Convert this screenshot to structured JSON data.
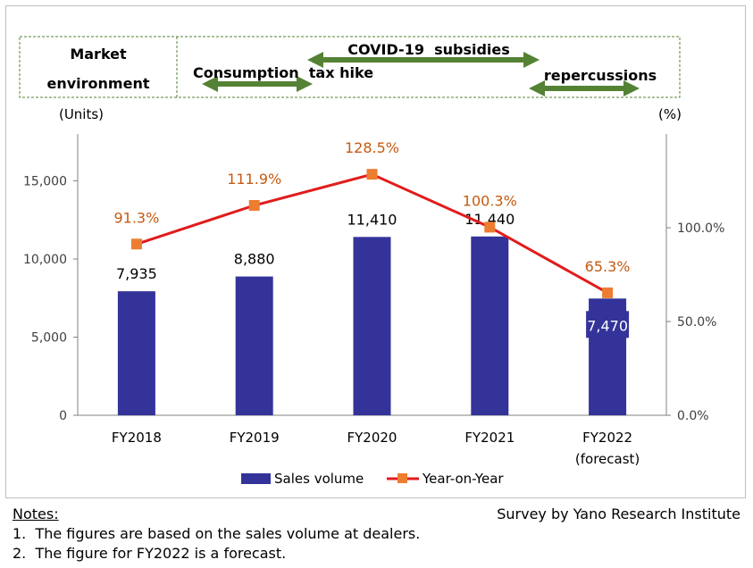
{
  "chart_data": {
    "type": "bar",
    "categories": [
      "FY2018",
      "FY2019",
      "FY2020",
      "FY2021",
      "FY2022"
    ],
    "category_sublabels": [
      "",
      "",
      "",
      "",
      "(forecast)"
    ],
    "series": [
      {
        "name": "Sales volume",
        "kind": "bar",
        "axis": "left",
        "values": [
          7935,
          8880,
          11410,
          11440,
          7470
        ],
        "labels": [
          "7,935",
          "8,880",
          "11,410",
          "11,440",
          "7,470"
        ]
      },
      {
        "name": "Year-on-Year",
        "kind": "line",
        "axis": "right",
        "values": [
          91.3,
          111.9,
          128.5,
          100.3,
          65.3
        ],
        "labels": [
          "91.3%",
          "111.9%",
          "128.5%",
          "100.3%",
          "65.3%"
        ]
      }
    ],
    "y_left": {
      "label": "(Units)",
      "ylim": [
        0,
        18000
      ],
      "ticks": [
        0,
        5000,
        10000,
        15000
      ],
      "tick_labels": [
        "0",
        "5,000",
        "10,000",
        "15,000"
      ]
    },
    "y_right": {
      "label": "(%)",
      "ylim": [
        0,
        150
      ],
      "ticks": [
        0,
        50,
        100
      ],
      "tick_labels": [
        "0.0%",
        "50.0%",
        "100.0%"
      ]
    },
    "legend_position": "bottom",
    "grid": false,
    "colors": {
      "bar": "#333399",
      "line": "#e21b1b",
      "marker": "#ed7d31",
      "pct_label": "#c55a11",
      "arrow": "#548235",
      "box_border": "#548235"
    },
    "market_environment": {
      "label_line1": "Market",
      "label_line2": "environment",
      "events": [
        {
          "text": "Consumption  tax hike",
          "from": "FY2018",
          "to": "FY2019"
        },
        {
          "text": "COVID-19  subsidies",
          "from": "FY2020",
          "to": "FY2021"
        },
        {
          "text": "repercussions",
          "from": "FY2022",
          "to": "FY2022"
        }
      ]
    }
  },
  "notes": {
    "heading": "Notes:",
    "source": "Survey by Yano Research Institute",
    "lines": [
      "1.  The figures are based on the sales volume at dealers.",
      "2.  The figure for FY2022 is a forecast."
    ]
  }
}
